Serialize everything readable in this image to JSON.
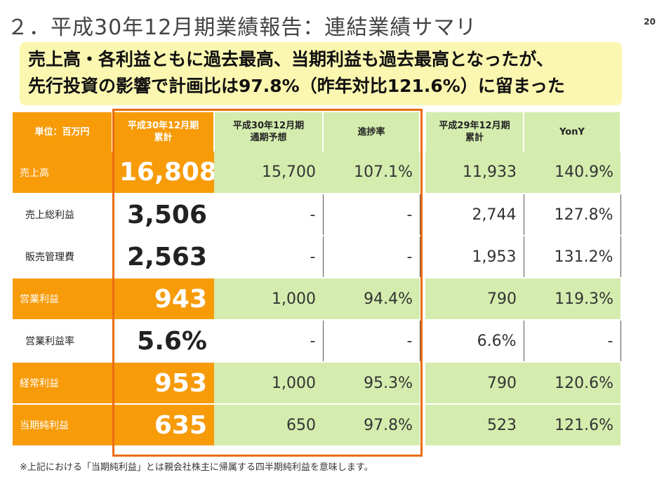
{
  "title": "２．平成30年12月期業績報告：連結業績サマリ",
  "page_number": "20",
  "headline": {
    "line1": "売上高・各利益ともに過去最高、当期利益も過去最高となったが、",
    "line2": "先行投資の影響で計画比は97.8%（昨年対比121.6%）に留まった"
  },
  "table": {
    "headers": {
      "unit": "単位：百万円",
      "current_l1": "平成30年12月期",
      "current_l2": "累計",
      "forecast_l1": "平成30年12月期",
      "forecast_l2": "通期予想",
      "progress": "進捗率",
      "prior_l1": "平成29年12月期",
      "prior_l2": "累計",
      "yony": "YonY"
    },
    "rows": [
      {
        "label": "売上高",
        "current": "16,808",
        "forecast": "15,700",
        "progress": "107.1%",
        "prior": "11,933",
        "yony": "140.9%"
      },
      {
        "label": "売上総利益",
        "current": "3,506",
        "forecast": "-",
        "progress": "-",
        "prior": "2,744",
        "yony": "127.8%"
      },
      {
        "label": "販売管理費",
        "current": "2,563",
        "forecast": "-",
        "progress": "-",
        "prior": "1,953",
        "yony": "131.2%"
      },
      {
        "label": "営業利益",
        "current": "943",
        "forecast": "1,000",
        "progress": "94.4%",
        "prior": "790",
        "yony": "119.3%"
      },
      {
        "label": "営業利益率",
        "current": "5.6%",
        "forecast": "-",
        "progress": "-",
        "prior": "6.6%",
        "yony": "-"
      },
      {
        "label": "経常利益",
        "current": "953",
        "forecast": "1,000",
        "progress": "95.3%",
        "prior": "790",
        "yony": "120.6%"
      },
      {
        "label": "当期純利益",
        "current": "635",
        "forecast": "650",
        "progress": "97.8%",
        "prior": "523",
        "yony": "121.6%"
      }
    ]
  },
  "footnote": "※上記における「当期純利益」とは親会社株主に帰属する四半期純利益を意味します。",
  "colors": {
    "orange": "#f79b09",
    "green": "#d4ecae",
    "frame": "#e96d10",
    "headline_bg": "#fbf7b0"
  }
}
